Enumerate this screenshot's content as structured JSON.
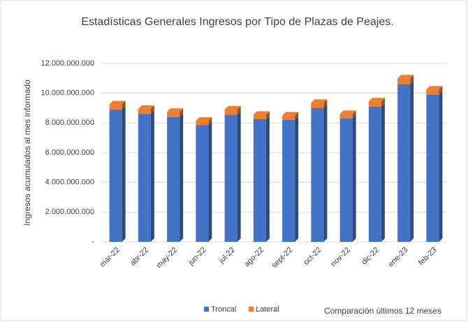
{
  "chart_data": {
    "type": "bar",
    "stacked": true,
    "title": "Estadísticas Generales Ingresos por Tipo de Plazas de Peajes.",
    "y_label": "Ingresos acumulados al mes informado",
    "annotation": "Comparación últimos 12 meses",
    "categories": [
      "mar-22",
      "abr-22",
      "may-22",
      "jun-22",
      "jul-22",
      "ago-22",
      "sept-22",
      "oct-22",
      "nov-22",
      "dic-22",
      "ene-23",
      "feb-23"
    ],
    "series": [
      {
        "name": "Troncal",
        "color": "#4472c4",
        "values": [
          8900000000,
          8600000000,
          8400000000,
          7850000000,
          8550000000,
          8250000000,
          8200000000,
          9000000000,
          8300000000,
          9100000000,
          10600000000,
          9900000000
        ]
      },
      {
        "name": "Lateral",
        "color": "#ed7d31",
        "values": [
          350000000,
          350000000,
          350000000,
          300000000,
          350000000,
          300000000,
          300000000,
          350000000,
          300000000,
          350000000,
          400000000,
          350000000
        ]
      }
    ],
    "ylim": [
      0,
      12000000000
    ],
    "yticks": [
      {
        "value": 0,
        "label": "-"
      },
      {
        "value": 2000000000,
        "label": "2.000.000.000"
      },
      {
        "value": 4000000000,
        "label": "4.000.000.000"
      },
      {
        "value": 6000000000,
        "label": "6.000.000.000"
      },
      {
        "value": 8000000000,
        "label": "8.000.000.000"
      },
      {
        "value": 10000000000,
        "label": "10.000.000.000"
      },
      {
        "value": 12000000000,
        "label": "12.000.000.000"
      }
    ],
    "grid": true,
    "legend": "bottom"
  }
}
